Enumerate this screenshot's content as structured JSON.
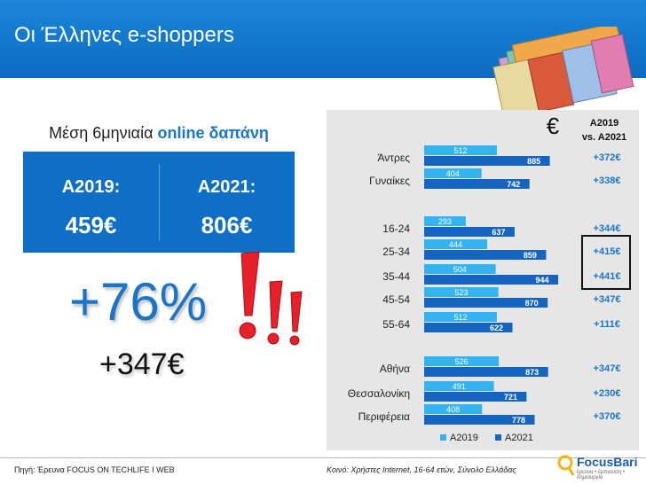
{
  "header": {
    "title": "Οι Έλληνες e-shoppers"
  },
  "summary": {
    "subtitle_plain": "Μέση 6μηνιαία",
    "subtitle_bold": "online δαπάνη",
    "a2019_label": "A2019:",
    "a2019_value": "459€",
    "a2021_label": "A2021:",
    "a2021_value": "806€",
    "growth_pct": "+76%",
    "growth_eur": "+347€"
  },
  "colors": {
    "header": "#0b6bc0",
    "box": "#0e6fc4",
    "bar_2019": "#33b4f0",
    "bar_2021": "#1565c0",
    "diff": "#1a75c7",
    "exclaim": "#e8202a"
  },
  "chart_data": {
    "type": "bar",
    "orientation": "horizontal",
    "currency_symbol": "€",
    "diff_header_line1": "A2019",
    "diff_header_line2": "vs. A2021",
    "categories": [
      "Άντρες",
      "Γυναίκες",
      "16-24",
      "25-34",
      "35-44",
      "45-54",
      "55-64",
      "Αθήνα",
      "Θεσσαλονίκη",
      "Περιφέρεια"
    ],
    "groups": [
      [
        0,
        1
      ],
      [
        2,
        3,
        4,
        5,
        6
      ],
      [
        7,
        8,
        9
      ]
    ],
    "series": [
      {
        "name": "A2019",
        "values": [
          512,
          404,
          293,
          444,
          504,
          523,
          512,
          526,
          491,
          408
        ]
      },
      {
        "name": "A2021",
        "values": [
          885,
          742,
          637,
          859,
          944,
          870,
          622,
          873,
          721,
          778
        ]
      }
    ],
    "diffs": [
      "+372€",
      "+338€",
      "+344€",
      "+415€",
      "+441€",
      "+347€",
      "+111€",
      "+347€",
      "+230€",
      "+370€"
    ],
    "highlighted": [
      3,
      4
    ],
    "xlim": [
      0,
      1000
    ],
    "legend_position": "bottom"
  },
  "footer": {
    "source": "Πηγή: Έρευνα FOCUS ON TECHLIFE I WEB",
    "base": "Κοινό: Χρήστες Internet, 16-64 ετών, Σύνολο Ελλάδας",
    "logo_brand": "FocusBari",
    "logo_tag": "έρευνα • έμπνευση • δημιουργία"
  }
}
